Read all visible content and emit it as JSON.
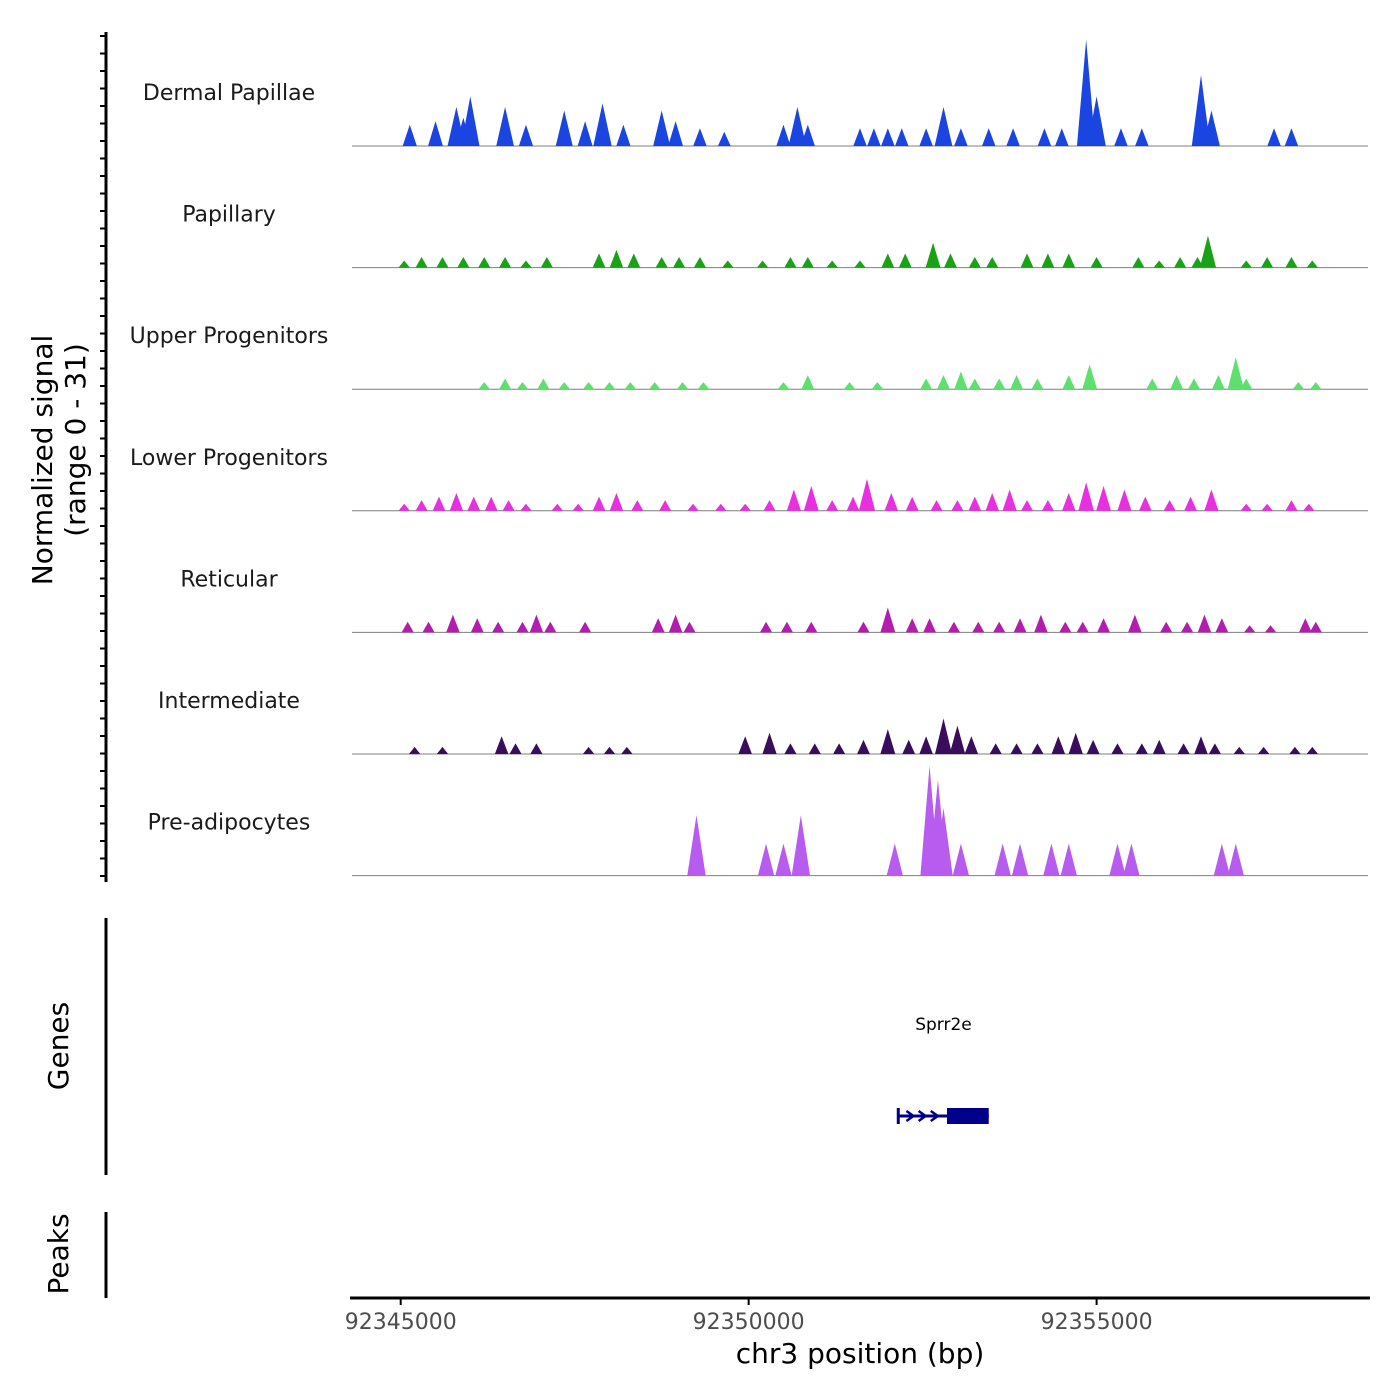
{
  "chart_data": {
    "type": "area",
    "title": "",
    "chromosome": "chr3",
    "xlabel": "chr3 position (bp)",
    "ylabel_line1": "Normalized signal",
    "ylabel_line2": "(range 0 - 31)",
    "ylim": [
      0,
      31
    ],
    "xlim": [
      92344300,
      92358900
    ],
    "x_ticks": [
      92345000,
      92350000,
      92355000
    ],
    "x_tick_labels": [
      "92345000",
      "92350000",
      "92355000"
    ],
    "series": [
      {
        "name": "Dermal Papillae",
        "color": "#1b45e0",
        "peaks": [
          [
            92345130,
            6
          ],
          [
            92345500,
            7
          ],
          [
            92345800,
            11
          ],
          [
            92345900,
            8
          ],
          [
            92346000,
            14
          ],
          [
            92346500,
            11
          ],
          [
            92346800,
            6
          ],
          [
            92347350,
            10
          ],
          [
            92347650,
            7
          ],
          [
            92347900,
            12
          ],
          [
            92348200,
            6
          ],
          [
            92348750,
            10
          ],
          [
            92348950,
            7
          ],
          [
            92349300,
            5
          ],
          [
            92349650,
            4
          ],
          [
            92350500,
            6
          ],
          [
            92350700,
            11
          ],
          [
            92350850,
            6
          ],
          [
            92351600,
            5
          ],
          [
            92351800,
            5
          ],
          [
            92352000,
            5
          ],
          [
            92352200,
            5
          ],
          [
            92352550,
            5
          ],
          [
            92352800,
            11
          ],
          [
            92353050,
            5
          ],
          [
            92353450,
            5
          ],
          [
            92353800,
            5
          ],
          [
            92354250,
            5
          ],
          [
            92354500,
            5
          ],
          [
            92354850,
            30
          ],
          [
            92355000,
            14
          ],
          [
            92355350,
            5
          ],
          [
            92355650,
            5
          ],
          [
            92356500,
            20
          ],
          [
            92356650,
            10
          ],
          [
            92357550,
            5
          ],
          [
            92357800,
            5
          ]
        ]
      },
      {
        "name": "Papillary",
        "color": "#17a313",
        "peaks": [
          [
            92345050,
            2
          ],
          [
            92345300,
            3
          ],
          [
            92345600,
            3
          ],
          [
            92345900,
            3
          ],
          [
            92346200,
            3
          ],
          [
            92346500,
            3
          ],
          [
            92346800,
            2
          ],
          [
            92347100,
            3
          ],
          [
            92347850,
            4
          ],
          [
            92348100,
            5
          ],
          [
            92348350,
            4
          ],
          [
            92348750,
            3
          ],
          [
            92349000,
            3
          ],
          [
            92349300,
            3
          ],
          [
            92349700,
            2
          ],
          [
            92350200,
            2
          ],
          [
            92350600,
            3
          ],
          [
            92350850,
            3
          ],
          [
            92351200,
            2
          ],
          [
            92351600,
            2
          ],
          [
            92352000,
            4
          ],
          [
            92352250,
            4
          ],
          [
            92352650,
            7
          ],
          [
            92352900,
            4
          ],
          [
            92353250,
            3
          ],
          [
            92353500,
            3
          ],
          [
            92354000,
            4
          ],
          [
            92354300,
            4
          ],
          [
            92354600,
            4
          ],
          [
            92355000,
            3
          ],
          [
            92355600,
            3
          ],
          [
            92355900,
            2
          ],
          [
            92356200,
            3
          ],
          [
            92356600,
            9
          ],
          [
            92356450,
            3
          ],
          [
            92357150,
            2
          ],
          [
            92357450,
            3
          ],
          [
            92357800,
            3
          ],
          [
            92358100,
            2
          ]
        ]
      },
      {
        "name": "Upper Progenitors",
        "color": "#5ee06e",
        "peaks": [
          [
            92346200,
            2
          ],
          [
            92346500,
            3
          ],
          [
            92346750,
            2
          ],
          [
            92347050,
            3
          ],
          [
            92347350,
            2
          ],
          [
            92347700,
            2
          ],
          [
            92348000,
            2
          ],
          [
            92348300,
            2
          ],
          [
            92348650,
            2
          ],
          [
            92349050,
            2
          ],
          [
            92349350,
            2
          ],
          [
            92350500,
            2
          ],
          [
            92350850,
            4
          ],
          [
            92351450,
            2
          ],
          [
            92351850,
            2
          ],
          [
            92352550,
            3
          ],
          [
            92352800,
            4
          ],
          [
            92353050,
            5
          ],
          [
            92353250,
            3
          ],
          [
            92353600,
            3
          ],
          [
            92353850,
            4
          ],
          [
            92354150,
            3
          ],
          [
            92354600,
            4
          ],
          [
            92354900,
            7
          ],
          [
            92355800,
            3
          ],
          [
            92356150,
            4
          ],
          [
            92356400,
            3
          ],
          [
            92356750,
            4
          ],
          [
            92357000,
            9
          ],
          [
            92357150,
            3
          ],
          [
            92357900,
            2
          ],
          [
            92358150,
            2
          ]
        ]
      },
      {
        "name": "Lower Progenitors",
        "color": "#e830e0",
        "peaks": [
          [
            92345050,
            2
          ],
          [
            92345300,
            3
          ],
          [
            92345550,
            4
          ],
          [
            92345800,
            5
          ],
          [
            92346050,
            4
          ],
          [
            92346300,
            4
          ],
          [
            92346550,
            3
          ],
          [
            92346800,
            2
          ],
          [
            92347250,
            2
          ],
          [
            92347550,
            2
          ],
          [
            92347850,
            4
          ],
          [
            92348100,
            5
          ],
          [
            92348400,
            3
          ],
          [
            92348800,
            3
          ],
          [
            92349200,
            2
          ],
          [
            92349600,
            2
          ],
          [
            92349950,
            2
          ],
          [
            92350300,
            3
          ],
          [
            92350650,
            6
          ],
          [
            92350900,
            7
          ],
          [
            92351200,
            3
          ],
          [
            92351500,
            4
          ],
          [
            92351700,
            9
          ],
          [
            92352050,
            5
          ],
          [
            92352350,
            4
          ],
          [
            92352700,
            3
          ],
          [
            92353000,
            3
          ],
          [
            92353250,
            4
          ],
          [
            92353500,
            5
          ],
          [
            92353750,
            6
          ],
          [
            92354000,
            3
          ],
          [
            92354300,
            3
          ],
          [
            92354600,
            5
          ],
          [
            92354850,
            8
          ],
          [
            92355100,
            7
          ],
          [
            92355400,
            6
          ],
          [
            92355700,
            4
          ],
          [
            92356050,
            3
          ],
          [
            92356350,
            4
          ],
          [
            92356650,
            6
          ],
          [
            92357150,
            2
          ],
          [
            92357450,
            2
          ],
          [
            92357800,
            3
          ],
          [
            92358050,
            2
          ]
        ]
      },
      {
        "name": "Reticular",
        "color": "#b41cb0",
        "peaks": [
          [
            92345100,
            3
          ],
          [
            92345400,
            3
          ],
          [
            92345750,
            5
          ],
          [
            92346100,
            4
          ],
          [
            92346400,
            3
          ],
          [
            92346750,
            3
          ],
          [
            92346950,
            5
          ],
          [
            92347150,
            3
          ],
          [
            92347650,
            3
          ],
          [
            92348700,
            4
          ],
          [
            92348950,
            5
          ],
          [
            92349150,
            3
          ],
          [
            92350250,
            3
          ],
          [
            92350550,
            3
          ],
          [
            92350900,
            3
          ],
          [
            92351650,
            3
          ],
          [
            92352000,
            7
          ],
          [
            92352350,
            4
          ],
          [
            92352600,
            4
          ],
          [
            92352950,
            3
          ],
          [
            92353300,
            3
          ],
          [
            92353600,
            3
          ],
          [
            92353900,
            4
          ],
          [
            92354200,
            5
          ],
          [
            92354550,
            3
          ],
          [
            92354800,
            3
          ],
          [
            92355100,
            4
          ],
          [
            92355550,
            5
          ],
          [
            92356000,
            3
          ],
          [
            92356300,
            3
          ],
          [
            92356550,
            5
          ],
          [
            92356800,
            4
          ],
          [
            92357200,
            2
          ],
          [
            92357500,
            2
          ],
          [
            92358000,
            4
          ],
          [
            92358150,
            3
          ]
        ]
      },
      {
        "name": "Intermediate",
        "color": "#3a0d5c",
        "peaks": [
          [
            92345200,
            2
          ],
          [
            92345600,
            2
          ],
          [
            92346450,
            5
          ],
          [
            92346650,
            3
          ],
          [
            92346950,
            3
          ],
          [
            92347700,
            2
          ],
          [
            92348000,
            2
          ],
          [
            92348250,
            2
          ],
          [
            92349950,
            5
          ],
          [
            92350300,
            6
          ],
          [
            92350600,
            3
          ],
          [
            92350950,
            3
          ],
          [
            92351300,
            3
          ],
          [
            92351650,
            4
          ],
          [
            92352000,
            7
          ],
          [
            92352300,
            4
          ],
          [
            92352550,
            5
          ],
          [
            92352800,
            10
          ],
          [
            92353000,
            8
          ],
          [
            92353200,
            5
          ],
          [
            92353550,
            3
          ],
          [
            92353850,
            3
          ],
          [
            92354150,
            3
          ],
          [
            92354450,
            5
          ],
          [
            92354700,
            6
          ],
          [
            92354950,
            4
          ],
          [
            92355300,
            3
          ],
          [
            92355650,
            3
          ],
          [
            92355900,
            4
          ],
          [
            92356250,
            3
          ],
          [
            92356500,
            5
          ],
          [
            92356700,
            3
          ],
          [
            92357050,
            2
          ],
          [
            92357400,
            2
          ],
          [
            92357850,
            2
          ],
          [
            92358100,
            2
          ]
        ]
      },
      {
        "name": "Pre-adipocytes",
        "color": "#b85cf0",
        "peaks": [
          [
            92349250,
            17
          ],
          [
            92350250,
            9
          ],
          [
            92350500,
            9
          ],
          [
            92350750,
            17
          ],
          [
            92352100,
            9
          ],
          [
            92352600,
            31
          ],
          [
            92352720,
            27
          ],
          [
            92352800,
            19
          ],
          [
            92353050,
            9
          ],
          [
            92353650,
            9
          ],
          [
            92353900,
            9
          ],
          [
            92354350,
            9
          ],
          [
            92354600,
            9
          ],
          [
            92355300,
            9
          ],
          [
            92355500,
            9
          ],
          [
            92356800,
            9
          ],
          [
            92357000,
            9
          ]
        ]
      }
    ],
    "genes": [
      {
        "name": "Sprr2e",
        "color": "#00008b",
        "start": 92352150,
        "end": 92353450,
        "exon_start": 92352850,
        "exon_end": 92353450,
        "strand": "+"
      }
    ],
    "panel_titles": {
      "genes": "Genes",
      "peaks": "Peaks"
    },
    "legend": "none",
    "grid": false
  }
}
